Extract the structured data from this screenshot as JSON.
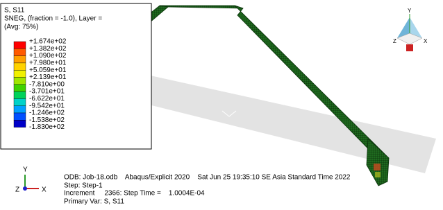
{
  "legend": {
    "title": "S, S11",
    "lines": [
      "SNEG, (fraction = -1.0), Layer =",
      "(Avg: 75%)"
    ],
    "labels": [
      "+1.674e+02",
      "+1.382e+02",
      "+1.090e+02",
      "+7.980e+01",
      "+5.059e+01",
      "+2.139e+01",
      "-7.810e+00",
      "-3.701e+01",
      "-6.622e+01",
      "-9.542e+01",
      "-1.246e+02",
      "-1.538e+02",
      "-1.830e+02"
    ]
  },
  "info": {
    "lines": [
      "ODB: Job-18.odb    Abaqus/Explicit 2020    Sat Jun 25 19:35:10 SE Asia Standard Time 2022",
      "Step: Step-1",
      "Increment     2366: Step Time =    1.0004E-04",
      "Primary Var: S, S11"
    ]
  },
  "triad": {
    "y": "Y",
    "z": "Z",
    "x": "X"
  },
  "view_cube": {
    "y": "Y",
    "z": "Z",
    "x": "X"
  }
}
